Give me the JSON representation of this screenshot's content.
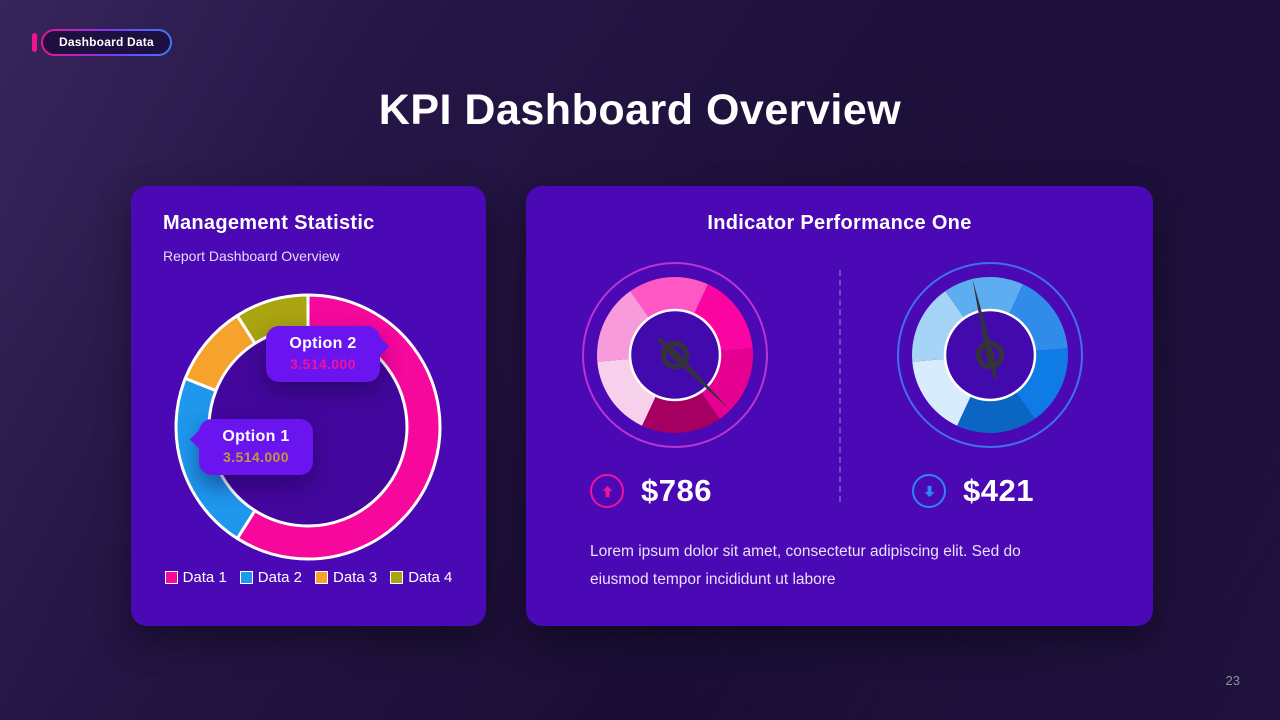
{
  "badge": {
    "label": "Dashboard Data"
  },
  "title": "KPI Dashboard Overview",
  "page_number": "23",
  "theme": {
    "card_color": "#4b08b5",
    "tooltip_color": "#6a15ef",
    "background_top": "#2c1a52",
    "background_bottom": "#140a29"
  },
  "left_card": {
    "title": "Management Statistic",
    "subtitle": "Report Dashboard Overview",
    "tooltips": [
      {
        "name": "Option 1",
        "value": "3.514.000",
        "value_color": "#c9953c"
      },
      {
        "name": "Option 2",
        "value": "3.514.000",
        "value_color": "#f2129e"
      }
    ],
    "legend": [
      {
        "label": "Data 1",
        "color": "#f5089b"
      },
      {
        "label": "Data 2",
        "color": "#1e97ed"
      },
      {
        "label": "Data 3",
        "color": "#f5a32c"
      },
      {
        "label": "Data 4",
        "color": "#aaa411"
      }
    ]
  },
  "right_card": {
    "title": "Indicator Performance One",
    "metrics": [
      {
        "value": "$786",
        "direction": "up",
        "accent": "#f2129e"
      },
      {
        "value": "$421",
        "direction": "down",
        "accent": "#2e86f0"
      }
    ],
    "description": "Lorem ipsum dolor sit amet, consectetur adipiscing elit. Sed do eiusmod tempor incididunt ut labore"
  },
  "chart_data": [
    {
      "type": "pie",
      "variant": "donut",
      "title": "Management Statistic",
      "labels": [
        "Data 1",
        "Data 2",
        "Data 3",
        "Data 4"
      ],
      "values": [
        59,
        22,
        10,
        9
      ],
      "colors": [
        "#f5089b",
        "#1e97ed",
        "#f5a32c",
        "#aaa411"
      ],
      "hole_color": "#43079e",
      "annotations": [
        {
          "label": "Option 1",
          "value": "3.514.000"
        },
        {
          "label": "Option 2",
          "value": "3.514.000"
        }
      ],
      "legend_position": "bottom"
    },
    {
      "type": "gauge",
      "name": "indicator-gauge-pink",
      "value_label": "$786",
      "trend": "up",
      "segment_colors": [
        "#ff57c3",
        "#fb05a2",
        "#e50092",
        "#a50061",
        "#f7d1ec",
        "#f89bdb"
      ],
      "segment_start_angle": -35,
      "needle_angle": 135,
      "needle_length": 76,
      "inner_color": "#4209ad",
      "ring_color": "#c43bd4"
    },
    {
      "type": "gauge",
      "name": "indicator-gauge-blue",
      "value_label": "$421",
      "trend": "down",
      "segment_colors": [
        "#5caef1",
        "#2f8ce9",
        "#0e7ce4",
        "#0b66c3",
        "#d9ecfc",
        "#a6d4f7"
      ],
      "segment_start_angle": -35,
      "needle_angle": -13,
      "needle_length": 78,
      "inner_color": "#4209ad",
      "ring_color": "#3f7cf0"
    }
  ]
}
